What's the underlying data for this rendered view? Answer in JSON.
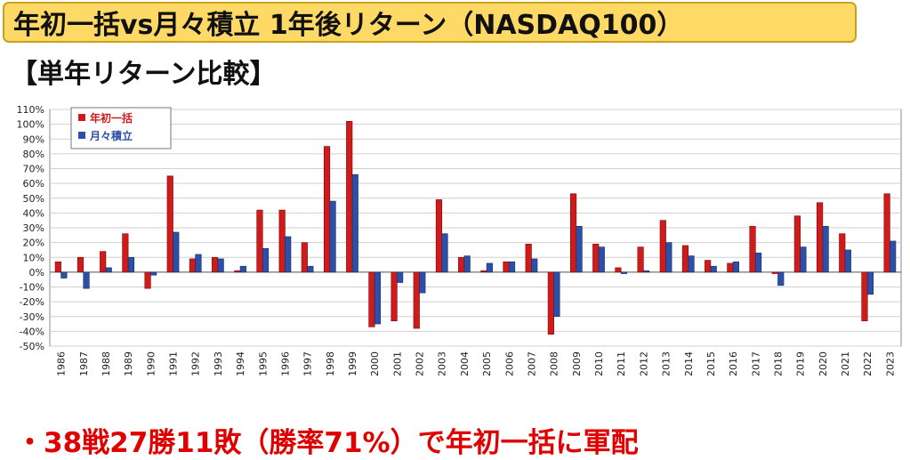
{
  "title": "年初一括vs月々積立 1年後リターン（NASDAQ100）",
  "subtitle": "【単年リターン比較】",
  "conclusion": "・38戦27勝11敗（勝率71%）で年初一括に軍配",
  "colors": {
    "lump": "#d11a1a",
    "monthly": "#2c4fa8",
    "title_bg": "#ffd966",
    "conclusion": "#e00000"
  },
  "chart_data": {
    "type": "bar",
    "categories": [
      "1986",
      "1987",
      "1988",
      "1989",
      "1990",
      "1991",
      "1992",
      "1993",
      "1994",
      "1995",
      "1996",
      "1997",
      "1998",
      "1999",
      "2000",
      "2001",
      "2002",
      "2003",
      "2004",
      "2005",
      "2006",
      "2007",
      "2008",
      "2009",
      "2010",
      "2011",
      "2012",
      "2013",
      "2014",
      "2015",
      "2016",
      "2017",
      "2018",
      "2019",
      "2020",
      "2021",
      "2022",
      "2023"
    ],
    "series": [
      {
        "name": "年初一括",
        "values": [
          7,
          10,
          14,
          26,
          -11,
          65,
          9,
          10,
          1,
          42,
          42,
          20,
          85,
          102,
          -37,
          -33,
          -38,
          49,
          10,
          1,
          7,
          19,
          -42,
          53,
          19,
          3,
          17,
          35,
          18,
          8,
          6,
          31,
          -1,
          38,
          47,
          26,
          -33,
          53
        ]
      },
      {
        "name": "月々積立",
        "values": [
          -4,
          -11,
          3,
          10,
          -2,
          27,
          12,
          9,
          4,
          16,
          24,
          4,
          48,
          66,
          -35,
          -7,
          -14,
          26,
          11,
          6,
          7,
          9,
          -30,
          31,
          17,
          -1,
          1,
          20,
          11,
          4,
          7,
          13,
          -9,
          17,
          31,
          15,
          -15,
          21
        ]
      }
    ],
    "ylim": [
      -50,
      110
    ],
    "yticks": [
      "110%",
      "100%",
      "90%",
      "80%",
      "70%",
      "60%",
      "50%",
      "40%",
      "30%",
      "20%",
      "10%",
      "0%",
      "-10%",
      "-20%",
      "-30%",
      "-40%",
      "-50%"
    ],
    "grid": true,
    "legend": "top-left"
  }
}
